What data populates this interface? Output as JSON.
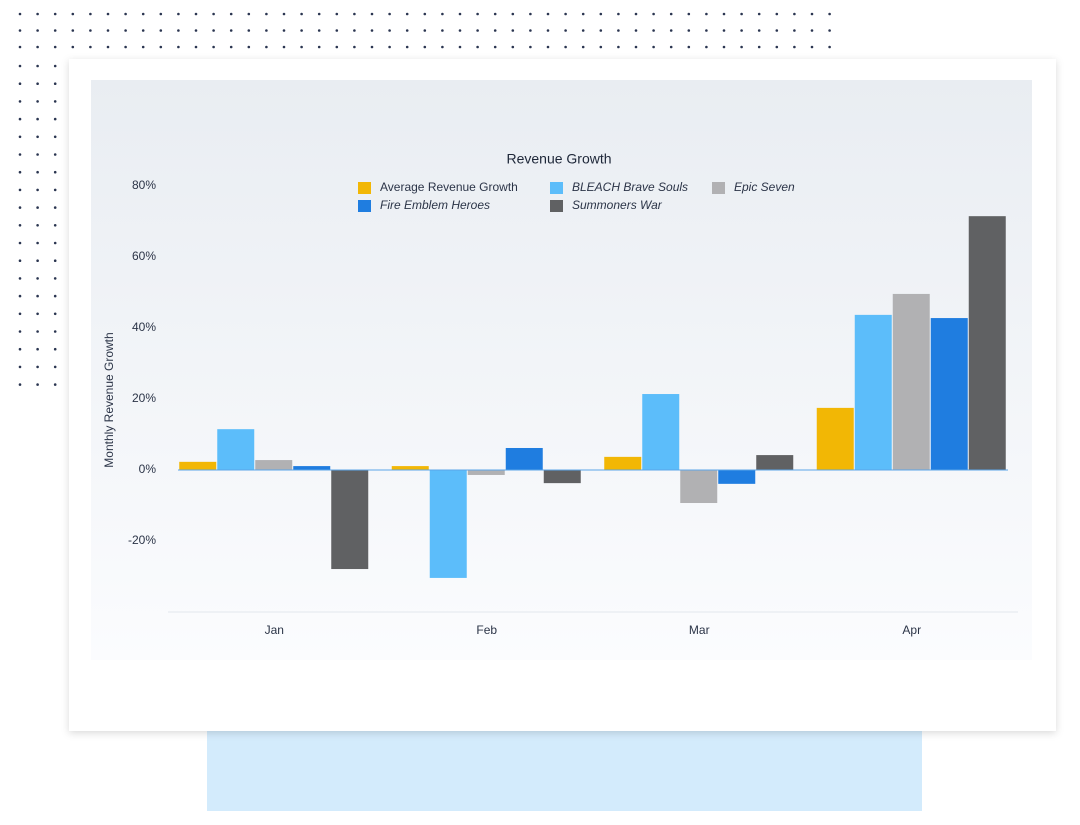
{
  "chart_data": {
    "type": "bar",
    "title": "Revenue Growth",
    "y_label": "Monthly Revenue Growth",
    "categories": [
      "Jan",
      "Feb",
      "Mar",
      "Apr"
    ],
    "series": [
      {
        "name": "Average Revenue Growth",
        "color": "#f2b705",
        "values": [
          2.3,
          1.1,
          3.7,
          17.5
        ]
      },
      {
        "name": "BLEACH Brave Souls",
        "color": "#5cbdfa",
        "values": [
          11.5,
          -30.4,
          21.4,
          43.7
        ]
      },
      {
        "name": "Epic Seven",
        "color": "#b1b1b3",
        "values": [
          2.8,
          -1.4,
          -9.3,
          49.6
        ]
      },
      {
        "name": "Fire Emblem Heroes",
        "color": "#1f7de0",
        "values": [
          1.1,
          6.2,
          -3.9,
          42.8
        ]
      },
      {
        "name": "Summoners War",
        "color": "#606163",
        "values": [
          -27.9,
          -3.7,
          4.2,
          71.5
        ]
      }
    ],
    "ylim": [
      -40,
      80
    ],
    "yticks": [
      {
        "value": -20,
        "label": "-20%"
      },
      {
        "value": 0,
        "label": "0%"
      },
      {
        "value": 20,
        "label": "20%"
      },
      {
        "value": 40,
        "label": "40%"
      },
      {
        "value": 60,
        "label": "60%"
      },
      {
        "value": 80,
        "label": "80%"
      }
    ]
  }
}
